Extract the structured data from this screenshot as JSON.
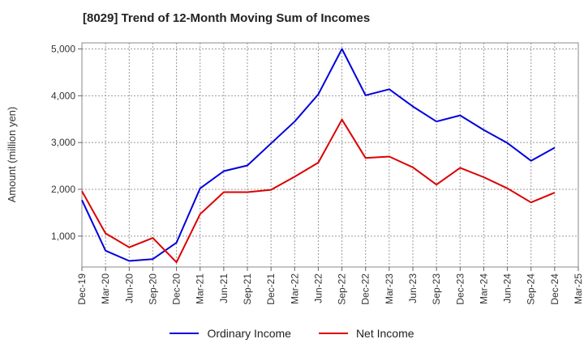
{
  "chart_data": {
    "type": "line",
    "title": "[8029]  Trend of 12-Month Moving Sum of Incomes",
    "ylabel": "Amount (million yen)",
    "xlabel": "",
    "categories": [
      "Dec-19",
      "Mar-20",
      "Jun-20",
      "Sep-20",
      "Dec-20",
      "Mar-21",
      "Jun-21",
      "Sep-21",
      "Dec-21",
      "Mar-22",
      "Jun-22",
      "Sep-22",
      "Dec-22",
      "Mar-23",
      "Jun-23",
      "Sep-23",
      "Dec-23",
      "Mar-24",
      "Jun-24",
      "Sep-24",
      "Dec-24",
      "Mar-25"
    ],
    "yticks": [
      1000,
      2000,
      3000,
      4000,
      5000
    ],
    "ytick_labels": [
      "1,000",
      "2,000",
      "3,000",
      "4,000",
      "5,000"
    ],
    "ylim": [
      340,
      5130
    ],
    "grid": true,
    "legend_position": "bottom",
    "series": [
      {
        "name": "Ordinary Income",
        "color": "#0000dd",
        "values": [
          1770,
          690,
          470,
          510,
          860,
          2020,
          2390,
          2510,
          2980,
          3450,
          4030,
          5000,
          4010,
          4140,
          3770,
          3450,
          3580,
          3270,
          2990,
          2610,
          2890,
          null
        ]
      },
      {
        "name": "Net Income",
        "color": "#dd0000",
        "values": [
          1960,
          1060,
          760,
          960,
          440,
          1470,
          1940,
          1940,
          1990,
          2270,
          2570,
          3490,
          2670,
          2700,
          2470,
          2100,
          2460,
          2260,
          2020,
          1720,
          1930,
          null
        ]
      }
    ]
  }
}
